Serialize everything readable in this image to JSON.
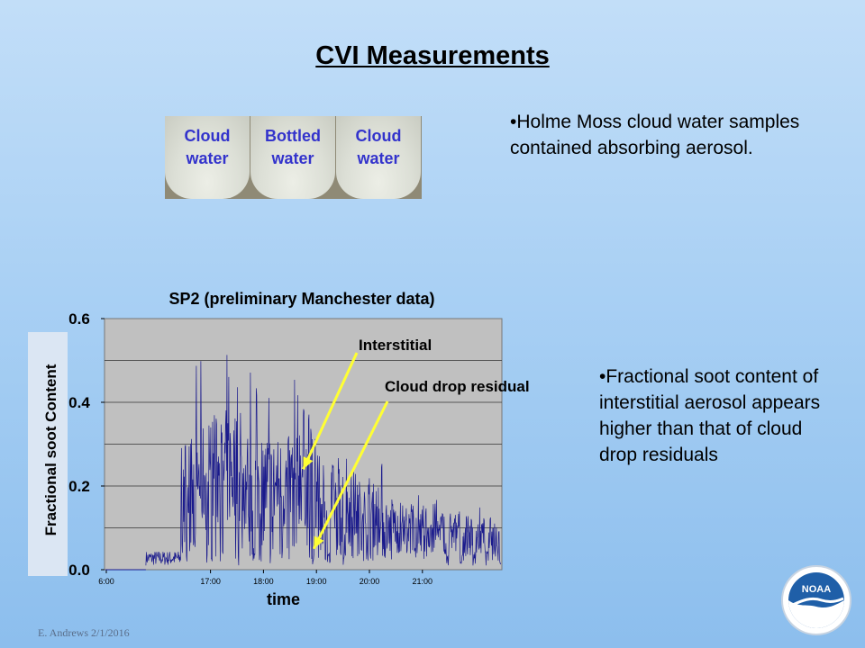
{
  "slide": {
    "title": "CVI Measurements",
    "footer": "E. Andrews   2/1/2016",
    "logo_text": "NOAA"
  },
  "photo": {
    "labels": [
      {
        "line1": "Cloud",
        "line2": "water"
      },
      {
        "line1": "Bottled",
        "line2": "water"
      },
      {
        "line1": "Cloud",
        "line2": "water"
      }
    ]
  },
  "bullets": [
    "•Holme Moss cloud water samples contained absorbing aerosol.",
    "•Fractional soot content of interstitial aerosol appears higher than that of cloud drop residuals"
  ],
  "chart_data": {
    "type": "line",
    "title": "SP2 (preliminary Manchester data)",
    "xlabel": "time",
    "ylabel": "Fractional soot Content",
    "ylim": [
      0.0,
      0.6
    ],
    "xlim_hours": [
      15.0,
      22.5
    ],
    "y_ticks": [
      "0.0",
      "0.2",
      "0.4",
      "0.6"
    ],
    "x_ticks": [
      "6:00",
      "17:00",
      "18:00",
      "19:00",
      "20:00",
      "21:00"
    ],
    "grid": true,
    "series_color": "#1a1a8c",
    "annotations": [
      {
        "text": "Interstitial",
        "arrow_to": {
          "x": 18.75,
          "y": 0.24
        }
      },
      {
        "text": "Cloud drop residual",
        "arrow_to": {
          "x": 18.95,
          "y": 0.05
        }
      }
    ],
    "bursts": [
      {
        "center": 16.58,
        "width": 0.14,
        "peak": 0.38,
        "mean": 0.2
      },
      {
        "center": 16.78,
        "width": 0.14,
        "peak": 0.5,
        "mean": 0.22
      },
      {
        "center": 17.08,
        "width": 0.14,
        "peak": 0.56,
        "mean": 0.23
      },
      {
        "center": 17.38,
        "width": 0.14,
        "peak": 0.52,
        "mean": 0.24
      },
      {
        "center": 17.68,
        "width": 0.14,
        "peak": 0.51,
        "mean": 0.21
      },
      {
        "center": 17.98,
        "width": 0.14,
        "peak": 0.5,
        "mean": 0.21
      },
      {
        "center": 18.28,
        "width": 0.14,
        "peak": 0.45,
        "mean": 0.2
      },
      {
        "center": 18.5,
        "width": 0.14,
        "peak": 0.5,
        "mean": 0.2
      },
      {
        "center": 18.78,
        "width": 0.14,
        "peak": 0.55,
        "mean": 0.24
      },
      {
        "center": 19.08,
        "width": 0.12,
        "peak": 0.4,
        "mean": 0.17
      },
      {
        "center": 19.38,
        "width": 0.12,
        "peak": 0.32,
        "mean": 0.16
      },
      {
        "center": 19.65,
        "width": 0.12,
        "peak": 0.28,
        "mean": 0.15
      },
      {
        "center": 19.9,
        "width": 0.12,
        "peak": 0.25,
        "mean": 0.13
      },
      {
        "center": 20.15,
        "width": 0.12,
        "peak": 0.27,
        "mean": 0.13
      },
      {
        "center": 20.4,
        "width": 0.12,
        "peak": 0.2,
        "mean": 0.11
      },
      {
        "center": 20.65,
        "width": 0.12,
        "peak": 0.2,
        "mean": 0.1
      },
      {
        "center": 20.9,
        "width": 0.12,
        "peak": 0.18,
        "mean": 0.1
      },
      {
        "center": 21.15,
        "width": 0.12,
        "peak": 0.18,
        "mean": 0.1
      },
      {
        "center": 21.35,
        "width": 0.1,
        "peak": 0.15,
        "mean": 0.09
      },
      {
        "center": 21.6,
        "width": 0.1,
        "peak": 0.15,
        "mean": 0.09
      },
      {
        "center": 21.85,
        "width": 0.1,
        "peak": 0.14,
        "mean": 0.08
      },
      {
        "center": 22.1,
        "width": 0.1,
        "peak": 0.15,
        "mean": 0.08
      },
      {
        "center": 22.35,
        "width": 0.1,
        "peak": 0.13,
        "mean": 0.08
      }
    ]
  }
}
